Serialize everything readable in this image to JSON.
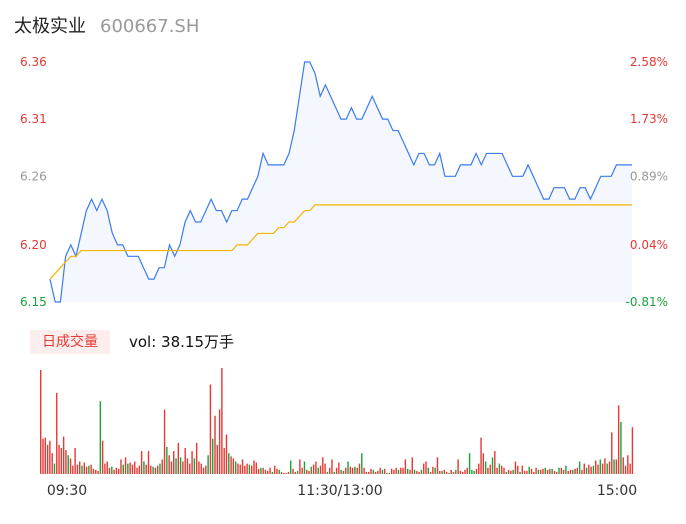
{
  "header": {
    "name": "太极实业",
    "code": "600667.SH"
  },
  "colors": {
    "up": "#e53935",
    "down": "#1aa33a",
    "neutral": "#999999",
    "price": "#3d7bec",
    "avg": "#f5b400"
  },
  "volume": {
    "badge": "日成交量",
    "text": "vol: 38.15万手"
  },
  "chart_data": [
    {
      "type": "line",
      "title": "",
      "x_ticks": [
        "09:30",
        "11:30/13:00",
        "15:00"
      ],
      "y_left_ticks": [
        "6.36",
        "6.31",
        "6.26",
        "6.20",
        "6.15"
      ],
      "y_right_ticks": [
        "2.58%",
        "1.73%",
        "0.89%",
        "0.04%",
        "-0.81%"
      ],
      "ylim": [
        6.15,
        6.36
      ],
      "prev_close": 6.197,
      "series": [
        {
          "key": "price",
          "values": [
            6.17,
            6.15,
            6.15,
            6.19,
            6.2,
            6.19,
            6.21,
            6.23,
            6.24,
            6.23,
            6.24,
            6.23,
            6.21,
            6.2,
            6.2,
            6.19,
            6.19,
            6.19,
            6.18,
            6.17,
            6.17,
            6.18,
            6.18,
            6.2,
            6.19,
            6.2,
            6.22,
            6.23,
            6.22,
            6.22,
            6.23,
            6.24,
            6.23,
            6.23,
            6.22,
            6.23,
            6.23,
            6.24,
            6.24,
            6.25,
            6.26,
            6.28,
            6.27,
            6.27,
            6.27,
            6.27,
            6.28,
            6.3,
            6.33,
            6.36,
            6.36,
            6.35,
            6.33,
            6.34,
            6.33,
            6.32,
            6.31,
            6.31,
            6.32,
            6.31,
            6.31,
            6.32,
            6.33,
            6.32,
            6.31,
            6.31,
            6.3,
            6.3,
            6.29,
            6.28,
            6.27,
            6.28,
            6.28,
            6.27,
            6.27,
            6.28,
            6.26,
            6.26,
            6.26,
            6.27,
            6.27,
            6.27,
            6.28,
            6.27,
            6.28,
            6.28,
            6.28,
            6.28,
            6.27,
            6.26,
            6.26,
            6.26,
            6.27,
            6.26,
            6.25,
            6.24,
            6.24,
            6.25,
            6.25,
            6.25,
            6.24,
            6.24,
            6.25,
            6.25,
            6.24,
            6.25,
            6.26,
            6.26,
            6.26,
            6.27,
            6.27,
            6.27,
            6.27
          ]
        },
        {
          "key": "avg",
          "values": [
            6.17,
            6.175,
            6.18,
            6.185,
            6.19,
            6.19,
            6.195,
            6.195,
            6.195,
            6.195,
            6.195,
            6.195,
            6.195,
            6.195,
            6.195,
            6.195,
            6.195,
            6.195,
            6.195,
            6.195,
            6.195,
            6.195,
            6.195,
            6.195,
            6.195,
            6.195,
            6.195,
            6.195,
            6.195,
            6.195,
            6.195,
            6.195,
            6.195,
            6.195,
            6.195,
            6.195,
            6.2,
            6.2,
            6.2,
            6.205,
            6.21,
            6.21,
            6.21,
            6.21,
            6.215,
            6.215,
            6.22,
            6.22,
            6.225,
            6.23,
            6.23,
            6.235,
            6.235,
            6.235,
            6.235,
            6.235,
            6.235,
            6.235,
            6.235,
            6.235,
            6.235,
            6.235,
            6.235,
            6.235,
            6.235,
            6.235,
            6.235,
            6.235,
            6.235,
            6.235,
            6.235,
            6.235,
            6.235,
            6.235,
            6.235,
            6.235,
            6.235,
            6.235,
            6.235,
            6.235,
            6.235,
            6.235,
            6.235,
            6.235,
            6.235,
            6.235,
            6.235,
            6.235,
            6.235,
            6.235,
            6.235,
            6.235,
            6.235,
            6.235,
            6.235,
            6.235,
            6.235,
            6.235,
            6.235,
            6.235,
            6.235,
            6.235,
            6.235,
            6.235,
            6.235,
            6.235,
            6.235,
            6.235,
            6.235,
            6.235,
            6.235,
            6.235,
            6.235
          ]
        }
      ]
    },
    {
      "type": "bar",
      "title": "",
      "ylim": [
        0,
        100
      ],
      "values": [
        100,
        34,
        35,
        28,
        32,
        20,
        10,
        78,
        28,
        25,
        36,
        23,
        18,
        15,
        8,
        25,
        9,
        12,
        8,
        11,
        7,
        8,
        9,
        5,
        4,
        3,
        70,
        32,
        10,
        12,
        6,
        7,
        4,
        6,
        5,
        14,
        9,
        16,
        10,
        11,
        9,
        12,
        6,
        8,
        22,
        12,
        9,
        22,
        8,
        7,
        6,
        8,
        10,
        14,
        62,
        26,
        18,
        12,
        22,
        15,
        30,
        16,
        12,
        25,
        15,
        10,
        22,
        15,
        30,
        12,
        10,
        6,
        8,
        18,
        86,
        34,
        56,
        28,
        62,
        102,
        25,
        38,
        20,
        17,
        15,
        12,
        10,
        9,
        14,
        8,
        10,
        9,
        8,
        13,
        11,
        5,
        6,
        6,
        4,
        3,
        6,
        2,
        8,
        5,
        4,
        2,
        1,
        1,
        2,
        13,
        5,
        2,
        3,
        14,
        6,
        12,
        4,
        3,
        7,
        9,
        12,
        6,
        8,
        16,
        10,
        2,
        6,
        14,
        2,
        6,
        11,
        4,
        3,
        6,
        12,
        7,
        6,
        7,
        6,
        10,
        20,
        6,
        2,
        2,
        5,
        4,
        2,
        3,
        6,
        4,
        5,
        1,
        1,
        5,
        4,
        6,
        4,
        6,
        6,
        14,
        5,
        4,
        16,
        4,
        3,
        2,
        4,
        10,
        12,
        6,
        2,
        7,
        6,
        16,
        3,
        3,
        4,
        2,
        1,
        4,
        2,
        4,
        14,
        3,
        2,
        4,
        6,
        20,
        4,
        3,
        5,
        10,
        35,
        20,
        12,
        6,
        9,
        16,
        22,
        6,
        10,
        8,
        6,
        2,
        4,
        3,
        4,
        12,
        8,
        2,
        8,
        3,
        3,
        7,
        5,
        2,
        6,
        4,
        4,
        5,
        6,
        4,
        5,
        5,
        3,
        2,
        6,
        6,
        4,
        8,
        3,
        4,
        4,
        5,
        6,
        12,
        4,
        10,
        6,
        9,
        7,
        8,
        13,
        9,
        14,
        10,
        15,
        10,
        12,
        40,
        14,
        14,
        66,
        50,
        16,
        8,
        18,
        10,
        45
      ],
      "colors_seq": "rrrrrrgrrrrrgrrrrrgrrgrrrrgrrrrgrrrrgrgrrrrrrgrrrgrrgrrgrrrgrgrrrrrgrrrrrgrgrrrrrrgrrgrrrrrgrrrrgrrrrgrrgrrrrgrrgrrgrrgrrgrrrgrrgrrgrrgrrgrrgrrrrgrrrgrrgrrrgrrrgrrgrrgrrgrrgrrgrrgrrgrrrrrgggrrrrgrrgrrgrrgrrgrrgrrrgrrrgrrgrrgrrgrrgrrgrrgrrgrrgrrgrrgrrgrrgrrrrrrrrg"
    }
  ]
}
